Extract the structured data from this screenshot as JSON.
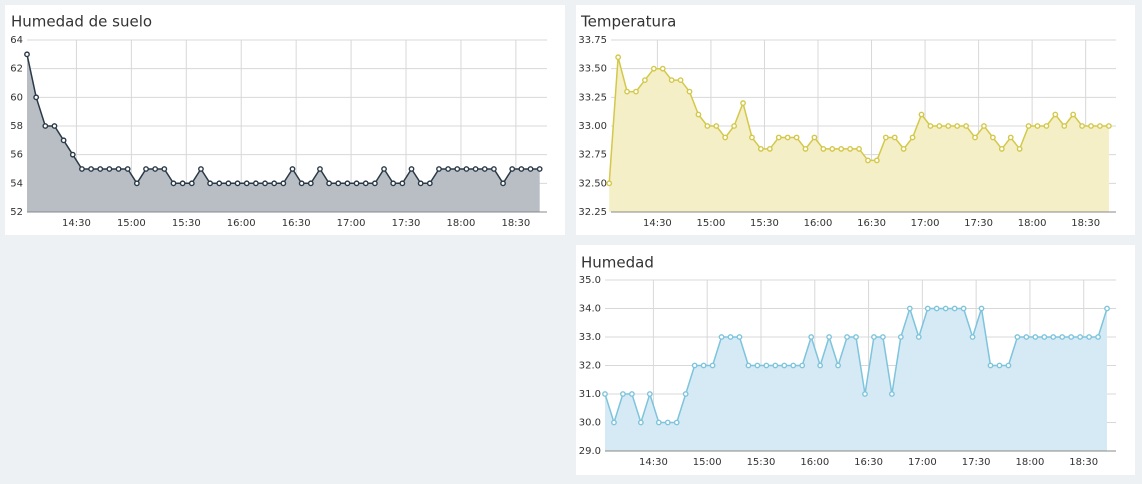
{
  "chart_data": [
    {
      "type": "area",
      "title": "Humedad de suelo",
      "x": [
        "14:03",
        "14:08",
        "14:13",
        "14:18",
        "14:23",
        "14:28",
        "14:33",
        "14:38",
        "14:43",
        "14:48",
        "14:53",
        "14:58",
        "15:03",
        "15:08",
        "15:13",
        "15:18",
        "15:23",
        "15:28",
        "15:33",
        "15:38",
        "15:43",
        "15:48",
        "15:53",
        "15:58",
        "16:03",
        "16:08",
        "16:13",
        "16:18",
        "16:23",
        "16:28",
        "16:33",
        "16:38",
        "16:43",
        "16:48",
        "16:53",
        "16:58",
        "17:03",
        "17:08",
        "17:13",
        "17:18",
        "17:23",
        "17:28",
        "17:33",
        "17:38",
        "17:43",
        "17:48",
        "17:53",
        "17:58",
        "18:03",
        "18:08",
        "18:13",
        "18:18",
        "18:23",
        "18:28",
        "18:33",
        "18:38",
        "18:43"
      ],
      "series": [
        {
          "color": "#2b3a48",
          "area_color": "#b9bec4",
          "values": [
            63,
            60,
            58,
            58,
            57,
            56,
            55,
            55,
            55,
            55,
            55,
            55,
            54,
            55,
            55,
            55,
            54,
            54,
            54,
            55,
            54,
            54,
            54,
            54,
            54,
            54,
            54,
            54,
            54,
            55,
            54,
            54,
            55,
            54,
            54,
            54,
            54,
            54,
            54,
            55,
            54,
            54,
            55,
            54,
            54,
            55,
            55,
            55,
            55,
            55,
            55,
            55,
            54,
            55,
            55,
            55,
            55
          ]
        }
      ],
      "xlim": [
        "14:03",
        "18:47"
      ],
      "xticks": [
        "14:30",
        "15:00",
        "15:30",
        "16:00",
        "16:30",
        "17:00",
        "17:30",
        "18:00",
        "18:30"
      ],
      "ylim": [
        52,
        64
      ],
      "yticks": [
        52,
        54,
        56,
        58,
        60,
        62,
        64
      ],
      "grid": true
    },
    {
      "type": "area",
      "title": "Temperatura",
      "x": [
        "14:03",
        "14:08",
        "14:13",
        "14:18",
        "14:23",
        "14:28",
        "14:33",
        "14:38",
        "14:43",
        "14:48",
        "14:53",
        "14:58",
        "15:03",
        "15:08",
        "15:13",
        "15:18",
        "15:23",
        "15:28",
        "15:33",
        "15:38",
        "15:43",
        "15:48",
        "15:53",
        "15:58",
        "16:03",
        "16:08",
        "16:13",
        "16:18",
        "16:23",
        "16:28",
        "16:33",
        "16:38",
        "16:43",
        "16:48",
        "16:53",
        "16:58",
        "17:03",
        "17:08",
        "17:13",
        "17:18",
        "17:23",
        "17:28",
        "17:33",
        "17:38",
        "17:43",
        "17:48",
        "17:53",
        "17:58",
        "18:03",
        "18:08",
        "18:13",
        "18:18",
        "18:23",
        "18:28",
        "18:33",
        "18:38",
        "18:43"
      ],
      "series": [
        {
          "color": "#d4c84a",
          "area_color": "#f4efc6",
          "values": [
            32.5,
            33.6,
            33.3,
            33.3,
            33.4,
            33.5,
            33.5,
            33.4,
            33.4,
            33.3,
            33.1,
            33.0,
            33.0,
            32.9,
            33.0,
            33.2,
            32.9,
            32.8,
            32.8,
            32.9,
            32.9,
            32.9,
            32.8,
            32.9,
            32.8,
            32.8,
            32.8,
            32.8,
            32.8,
            32.7,
            32.7,
            32.9,
            32.9,
            32.8,
            32.9,
            33.1,
            33.0,
            33.0,
            33.0,
            33.0,
            33.0,
            32.9,
            33.0,
            32.9,
            32.8,
            32.9,
            32.8,
            33.0,
            33.0,
            33.0,
            33.1,
            33.0,
            33.1,
            33.0,
            33.0,
            33.0,
            33.0
          ]
        }
      ],
      "xlim": [
        "14:04",
        "18:47"
      ],
      "xticks": [
        "14:30",
        "15:00",
        "15:30",
        "16:00",
        "16:30",
        "17:00",
        "17:30",
        "18:00",
        "18:30"
      ],
      "ylim": [
        32.25,
        33.75
      ],
      "yticks": [
        32.25,
        {
          "value": 32.5,
          "label": "32.50"
        },
        32.75,
        {
          "value": 33,
          "label": "33.00"
        },
        33.25,
        {
          "value": 33.5,
          "label": "33.50"
        },
        33.75
      ],
      "grid": true
    },
    {
      "type": "area",
      "title": "Humedad",
      "x": [
        "14:03",
        "14:08",
        "14:13",
        "14:18",
        "14:23",
        "14:28",
        "14:33",
        "14:38",
        "14:43",
        "14:48",
        "14:53",
        "14:58",
        "15:03",
        "15:08",
        "15:13",
        "15:18",
        "15:23",
        "15:28",
        "15:33",
        "15:38",
        "15:43",
        "15:48",
        "15:53",
        "15:58",
        "16:03",
        "16:08",
        "16:13",
        "16:18",
        "16:23",
        "16:28",
        "16:33",
        "16:38",
        "16:43",
        "16:48",
        "16:53",
        "16:58",
        "17:03",
        "17:08",
        "17:13",
        "17:18",
        "17:23",
        "17:28",
        "17:33",
        "17:38",
        "17:43",
        "17:48",
        "17:53",
        "17:58",
        "18:03",
        "18:08",
        "18:13",
        "18:18",
        "18:23",
        "18:28",
        "18:33",
        "18:38",
        "18:43"
      ],
      "series": [
        {
          "color": "#7ec4dc",
          "area_color": "#d5eaf4",
          "values": [
            31,
            30,
            31,
            31,
            30,
            31,
            30,
            30,
            30,
            31,
            32,
            32,
            32,
            33,
            33,
            33,
            32,
            32,
            32,
            32,
            32,
            32,
            32,
            33,
            32,
            33,
            32,
            33,
            33,
            31,
            33,
            33,
            31,
            33,
            34,
            33,
            34,
            34,
            34,
            34,
            34,
            33,
            34,
            32,
            32,
            32,
            33,
            33,
            33,
            33,
            33,
            33,
            33,
            33,
            33,
            33,
            34
          ]
        }
      ],
      "xlim": [
        "14:03",
        "18:48"
      ],
      "xticks": [
        "14:30",
        "15:00",
        "15:30",
        "16:00",
        "16:30",
        "17:00",
        "17:30",
        "18:00",
        "18:30"
      ],
      "ylim": [
        29,
        35
      ],
      "yticks": [
        {
          "value": 29,
          "label": "29.0"
        },
        {
          "value": 30,
          "label": "30.0"
        },
        {
          "value": 31,
          "label": "31.0"
        },
        {
          "value": 32,
          "label": "32.0"
        },
        {
          "value": 33,
          "label": "33.0"
        },
        {
          "value": 34,
          "label": "34.0"
        },
        {
          "value": 35,
          "label": "35.0"
        }
      ],
      "grid": true
    }
  ]
}
